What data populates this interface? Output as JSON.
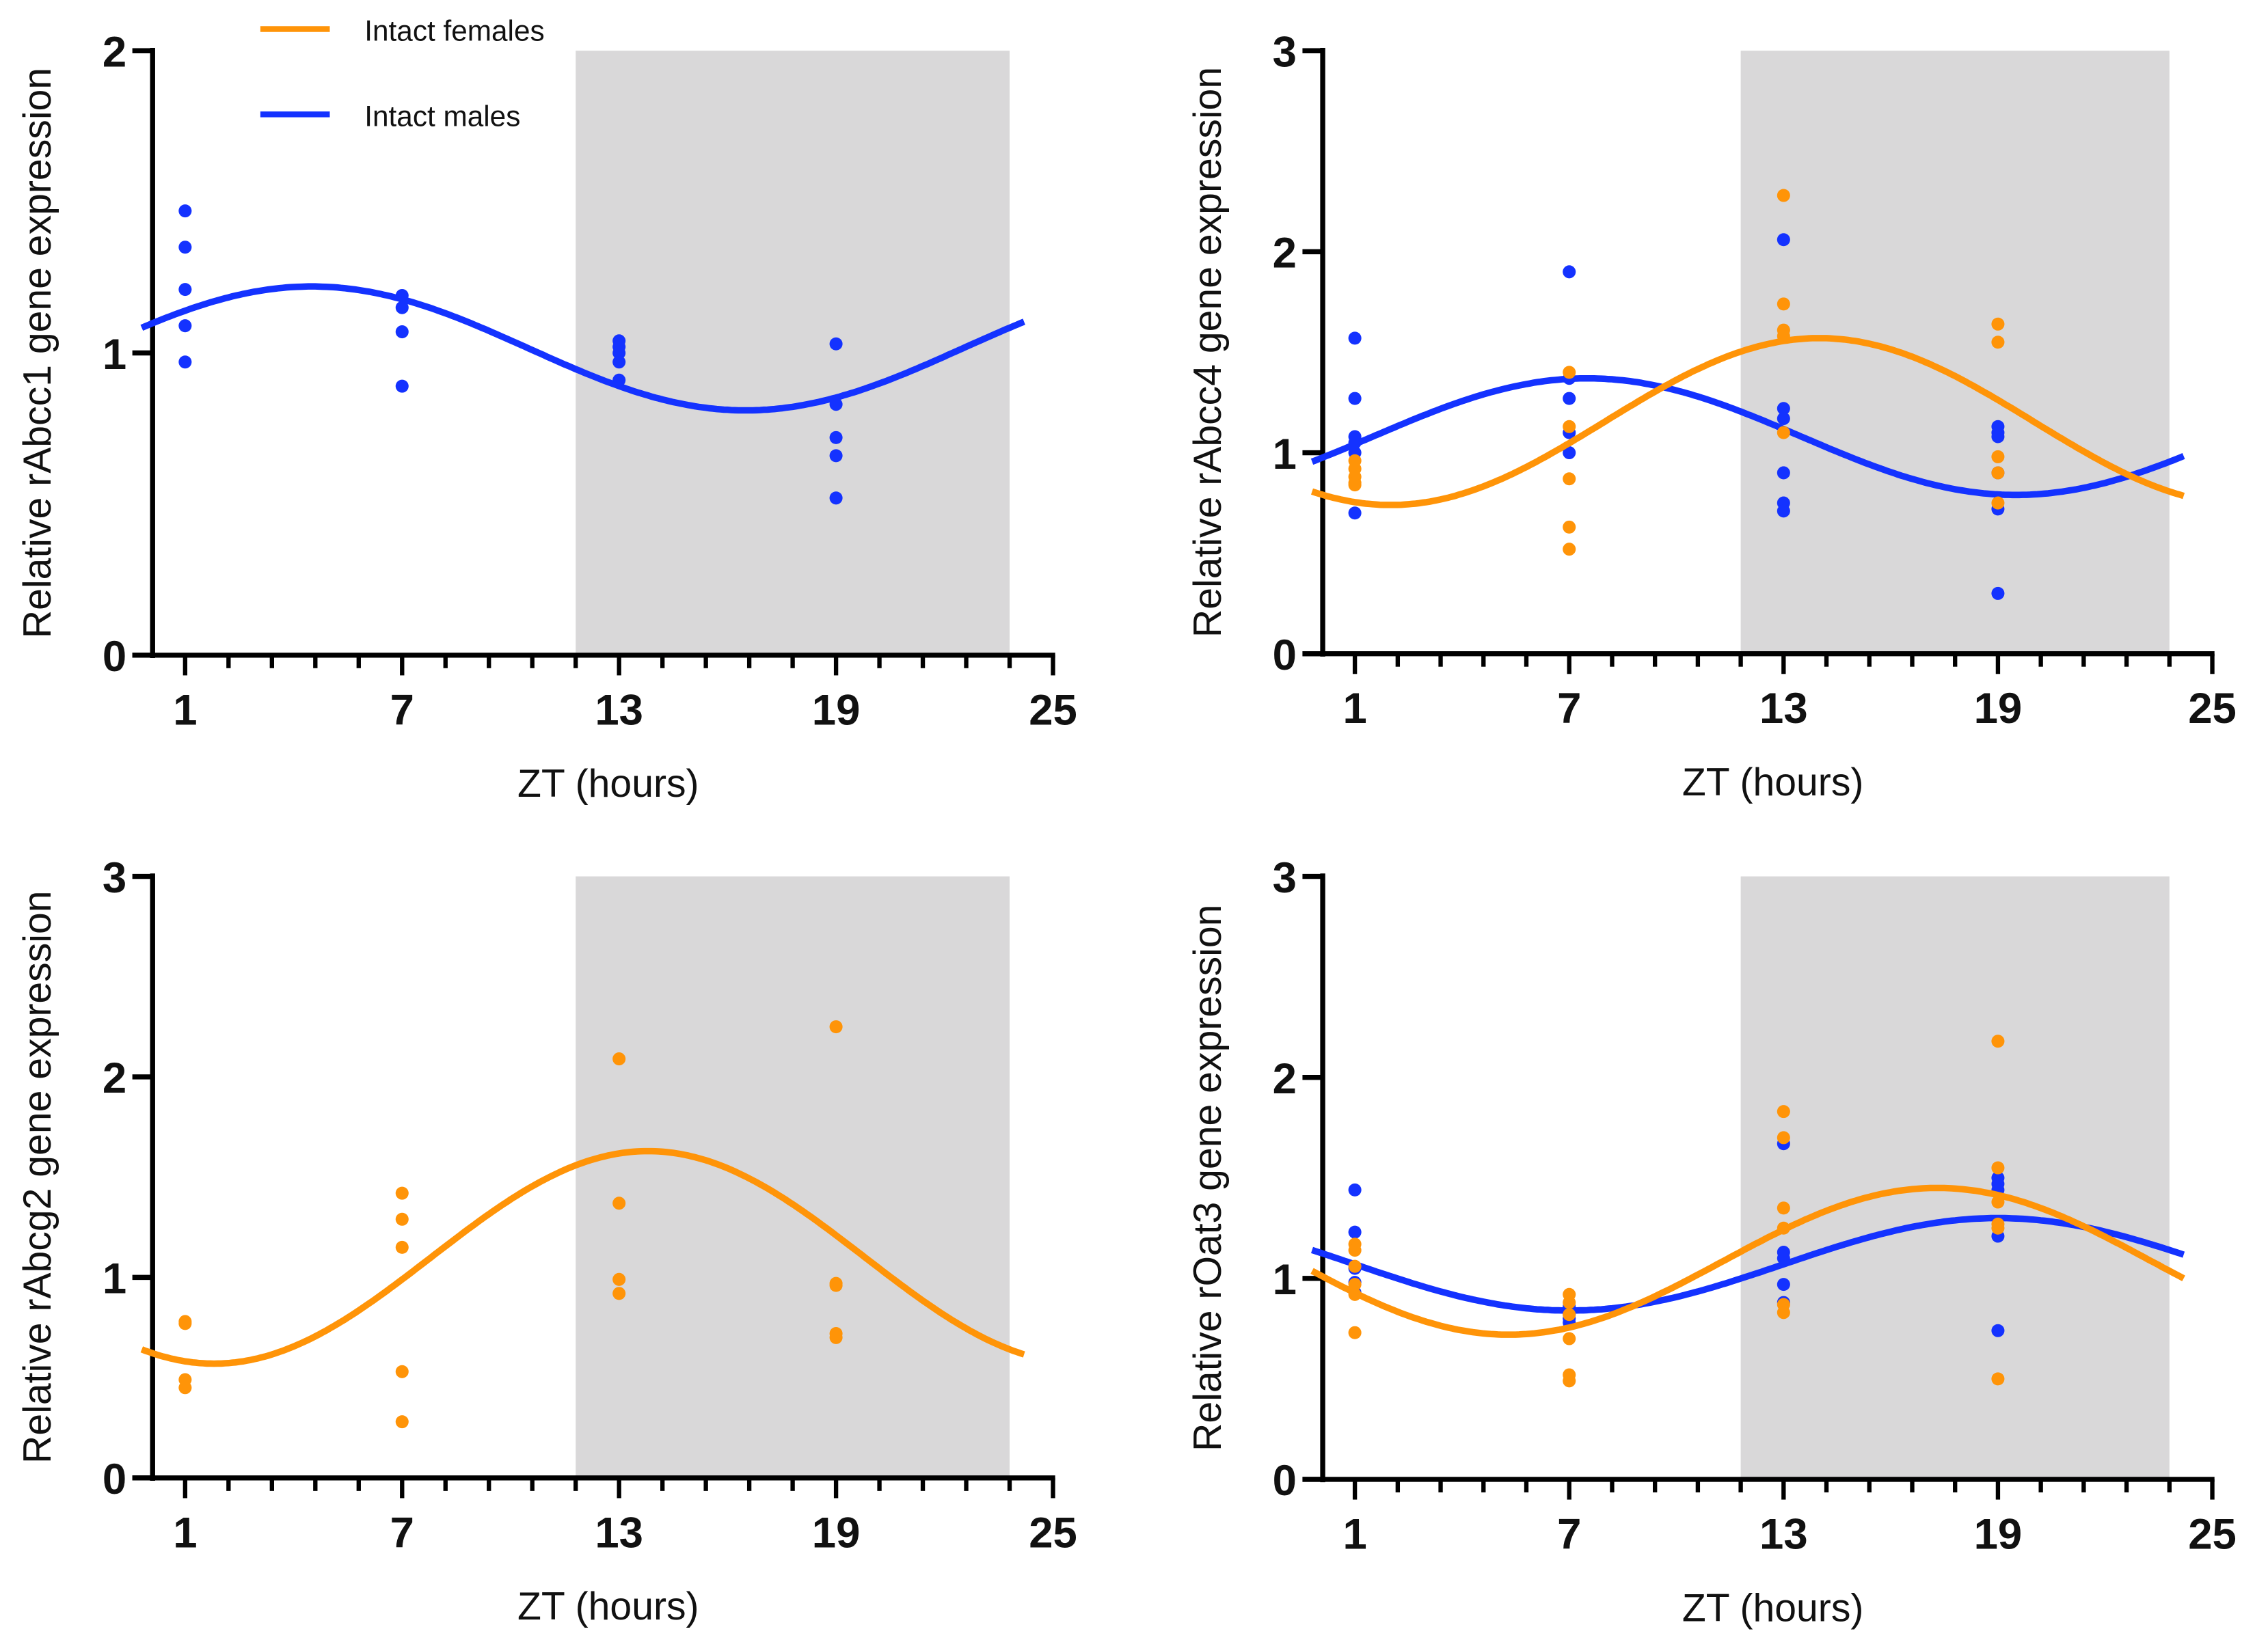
{
  "legend": {
    "female": "Intact females",
    "male": "Intact males"
  },
  "colors": {
    "female": "#FF9408",
    "male": "#1432FF",
    "shade": "#D9D8D9"
  },
  "chart_data": [
    {
      "type": "scatter",
      "ylabel": "Relative rAbcc1 gene expression",
      "xlabel": "ZT (hours)",
      "xlim": [
        0,
        25
      ],
      "ylim": [
        0,
        2
      ],
      "xticks": [
        "1",
        "7",
        "13",
        "19",
        "25"
      ],
      "yticks": [
        "0",
        "1",
        "2"
      ],
      "dark_phase": [
        11.8,
        23.8
      ],
      "series": [
        {
          "name": "Intact males",
          "fit": {
            "mesor": 1.015,
            "amplitude": 0.205,
            "acrophase": 4.5
          },
          "points": {
            "1": [
              1.47,
              1.35,
              1.21,
              1.09,
              0.97
            ],
            "7": [
              1.19,
              1.15,
              1.07,
              0.89
            ],
            "13": [
              1.04,
              1.02,
              1.0,
              0.97,
              0.91
            ],
            "19": [
              1.03,
              0.83,
              0.72,
              0.66,
              0.52
            ]
          }
        }
      ]
    },
    {
      "type": "scatter",
      "ylabel": "Relative rAbcc4 gene expression",
      "xlabel": "ZT (hours)",
      "xlim": [
        0,
        25
      ],
      "ylim": [
        0,
        3
      ],
      "xticks": [
        "1",
        "7",
        "13",
        "19",
        "25"
      ],
      "yticks": [
        "0",
        "1",
        "2",
        "3"
      ],
      "dark_phase": [
        11.8,
        23.8
      ],
      "series": [
        {
          "name": "Intact males",
          "fit": {
            "mesor": 1.08,
            "amplitude": 0.29,
            "acrophase": 7.5
          },
          "points": {
            "1": [
              1.57,
              1.27,
              1.08,
              1.05,
              1.0,
              0.7
            ],
            "7": [
              1.9,
              1.37,
              1.27,
              1.1,
              1.0
            ],
            "13": [
              2.06,
              1.22,
              1.17,
              0.9,
              0.75,
              0.71
            ],
            "19": [
              1.13,
              1.1,
              1.08,
              0.9,
              0.72,
              0.3
            ]
          }
        },
        {
          "name": "Intact females",
          "fit": {
            "mesor": 1.155,
            "amplitude": 0.415,
            "acrophase": 14
          },
          "points": {
            "1": [
              0.96,
              0.92,
              0.88,
              0.85,
              0.84
            ],
            "7": [
              1.4,
              1.13,
              0.87,
              0.63,
              0.52
            ],
            "13": [
              2.28,
              1.74,
              1.61,
              1.58,
              1.1
            ],
            "19": [
              1.64,
              1.55,
              0.98,
              0.9,
              0.75
            ]
          }
        }
      ]
    },
    {
      "type": "scatter",
      "ylabel": "Relative rAbcg2 gene expression",
      "xlabel": "ZT (hours)",
      "xlim": [
        0,
        25
      ],
      "ylim": [
        0,
        3
      ],
      "xticks": [
        "1",
        "7",
        "13",
        "19",
        "25"
      ],
      "yticks": [
        "0",
        "1",
        "2",
        "3"
      ],
      "dark_phase": [
        11.8,
        23.8
      ],
      "series": [
        {
          "name": "Intact females",
          "fit": {
            "mesor": 1.1,
            "amplitude": 0.53,
            "acrophase": 13.8
          },
          "points": {
            "1": [
              0.78,
              0.77,
              0.49,
              0.45
            ],
            "7": [
              1.42,
              1.29,
              1.15,
              0.53,
              0.28
            ],
            "13": [
              2.09,
              1.37,
              0.99,
              0.92
            ],
            "19": [
              2.25,
              0.97,
              0.96,
              0.72,
              0.7
            ]
          }
        }
      ]
    },
    {
      "type": "scatter",
      "ylabel": "Relative rOat3 gene expression",
      "xlabel": "ZT (hours)",
      "xlim": [
        0,
        25
      ],
      "ylim": [
        0,
        3
      ],
      "xticks": [
        "1",
        "7",
        "13",
        "19",
        "25"
      ],
      "yticks": [
        "0",
        "1",
        "2",
        "3"
      ],
      "dark_phase": [
        11.8,
        23.8
      ],
      "series": [
        {
          "name": "Intact males",
          "fit": {
            "mesor": 1.07,
            "amplitude": 0.23,
            "acrophase": 19
          },
          "points": {
            "1": [
              1.44,
              1.23,
              1.05,
              0.98,
              0.93
            ],
            "7": [
              0.86,
              0.82,
              0.8,
              0.78
            ],
            "13": [
              1.67,
              1.13,
              1.1,
              0.97,
              0.88
            ],
            "19": [
              1.5,
              1.47,
              1.44,
              1.21,
              0.74
            ]
          }
        },
        {
          "name": "Intact females",
          "fit": {
            "mesor": 1.085,
            "amplitude": 0.365,
            "acrophase": 17.3
          },
          "points": {
            "1": [
              1.17,
              1.14,
              1.06,
              0.97,
              0.92,
              0.73
            ],
            "7": [
              0.92,
              0.88,
              0.82,
              0.7,
              0.52,
              0.49
            ],
            "13": [
              1.83,
              1.7,
              1.35,
              1.25,
              0.87,
              0.83
            ],
            "19": [
              2.18,
              1.55,
              1.38,
              1.27,
              1.25,
              0.5
            ]
          }
        }
      ]
    }
  ]
}
